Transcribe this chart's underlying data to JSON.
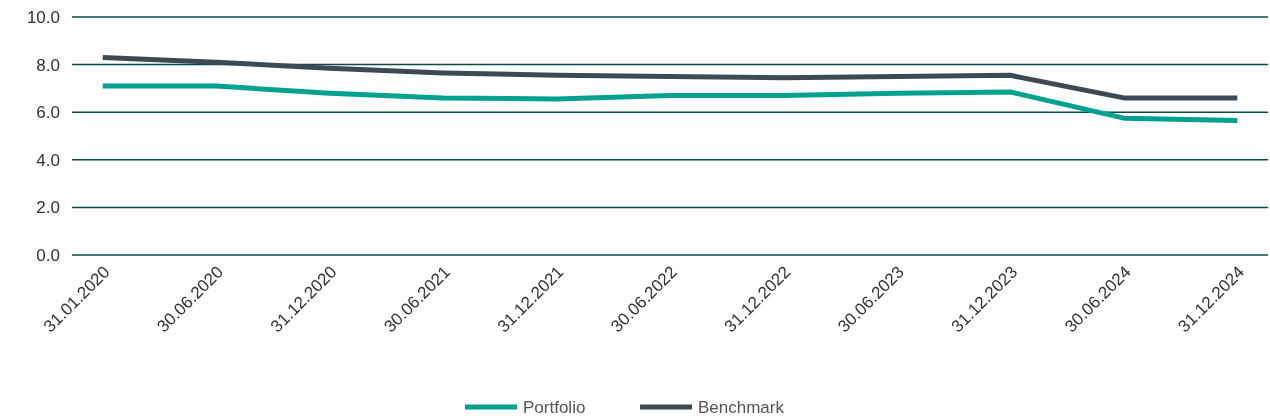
{
  "chart_data": {
    "type": "line",
    "categories": [
      "31.01.2020",
      "30.06.2020",
      "31.12.2020",
      "30.06.2021",
      "31.12.2021",
      "30.06.2022",
      "31.12.2022",
      "30.06.2023",
      "31.12.2023",
      "30.06.2024",
      "31.12.2024"
    ],
    "series": [
      {
        "name": "Portfolio",
        "color": "#00a28f",
        "values": [
          7.1,
          7.1,
          6.8,
          6.6,
          6.55,
          6.7,
          6.7,
          6.8,
          6.85,
          5.75,
          5.65
        ]
      },
      {
        "name": "Benchmark",
        "color": "#3c4a54",
        "values": [
          8.3,
          8.1,
          7.85,
          7.65,
          7.55,
          7.5,
          7.45,
          7.5,
          7.55,
          6.6,
          6.6
        ]
      }
    ],
    "ylim": [
      0,
      10
    ],
    "yticks": [
      {
        "value": 0,
        "label": "0.0"
      },
      {
        "value": 2,
        "label": "2.0"
      },
      {
        "value": 4,
        "label": "4.0"
      },
      {
        "value": 6,
        "label": "6.0"
      },
      {
        "value": 8,
        "label": "8.0"
      },
      {
        "value": 10,
        "label": "10.0"
      }
    ],
    "grid": "y",
    "legend": "bottom",
    "marker": "none",
    "line_style": "solid"
  }
}
